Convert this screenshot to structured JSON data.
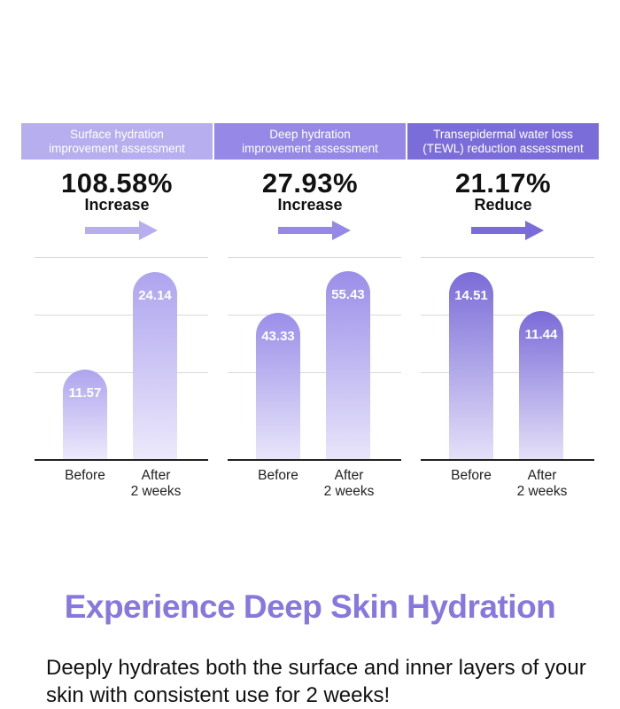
{
  "chart_data": [
    {
      "type": "bar",
      "title": "Surface hydration improvement assessment",
      "title_lines": [
        "Surface hydration",
        "improvement assessment"
      ],
      "stat_value": "108.58%",
      "stat_label": "Increase",
      "categories": [
        "Before",
        "After\n2 weeks"
      ],
      "values": [
        11.57,
        24.14
      ],
      "value_labels": [
        "11.57",
        "24.14"
      ],
      "ylim": [
        0,
        26.05
      ],
      "grid": true,
      "header_color": "#b7aef0",
      "arrow_color": "#b7aef0",
      "bar_top_color": "#aea4ef",
      "bar_bottom_color": "#ece9fb"
    },
    {
      "type": "bar",
      "title": "Deep hydration improvement assessment",
      "title_lines": [
        "Deep hydration",
        "improvement assessment"
      ],
      "stat_value": "27.93%",
      "stat_label": "Increase",
      "categories": [
        "Before",
        "After\n2 weeks"
      ],
      "values": [
        43.33,
        55.43
      ],
      "value_labels": [
        "43.33",
        "55.43"
      ],
      "ylim": [
        0,
        59.7
      ],
      "grid": true,
      "header_color": "#9588e6",
      "arrow_color": "#9588e6",
      "bar_top_color": "#9a8ee9",
      "bar_bottom_color": "#e8e5fa"
    },
    {
      "type": "bar",
      "title": "Transepidermal water loss (TEWL) reduction assessment",
      "title_lines": [
        "Transepidermal water loss",
        "(TEWL) reduction assessment"
      ],
      "stat_value": "21.17%",
      "stat_label": "Reduce",
      "categories": [
        "Before",
        "After\n2 weeks"
      ],
      "values": [
        14.51,
        11.44
      ],
      "value_labels": [
        "14.51",
        "11.44"
      ],
      "ylim": [
        0,
        15.65
      ],
      "grid": true,
      "header_color": "#7b6dd9",
      "arrow_color": "#7b6dd9",
      "bar_top_color": "#7a6bd8",
      "bar_bottom_color": "#e4e0f8"
    }
  ],
  "headline": "Experience Deep Skin Hydration",
  "subtext": "Deeply hydrates both the surface and inner layers of your skin with consistent use for 2 weeks!",
  "colors": {
    "headline": "#8777de"
  }
}
